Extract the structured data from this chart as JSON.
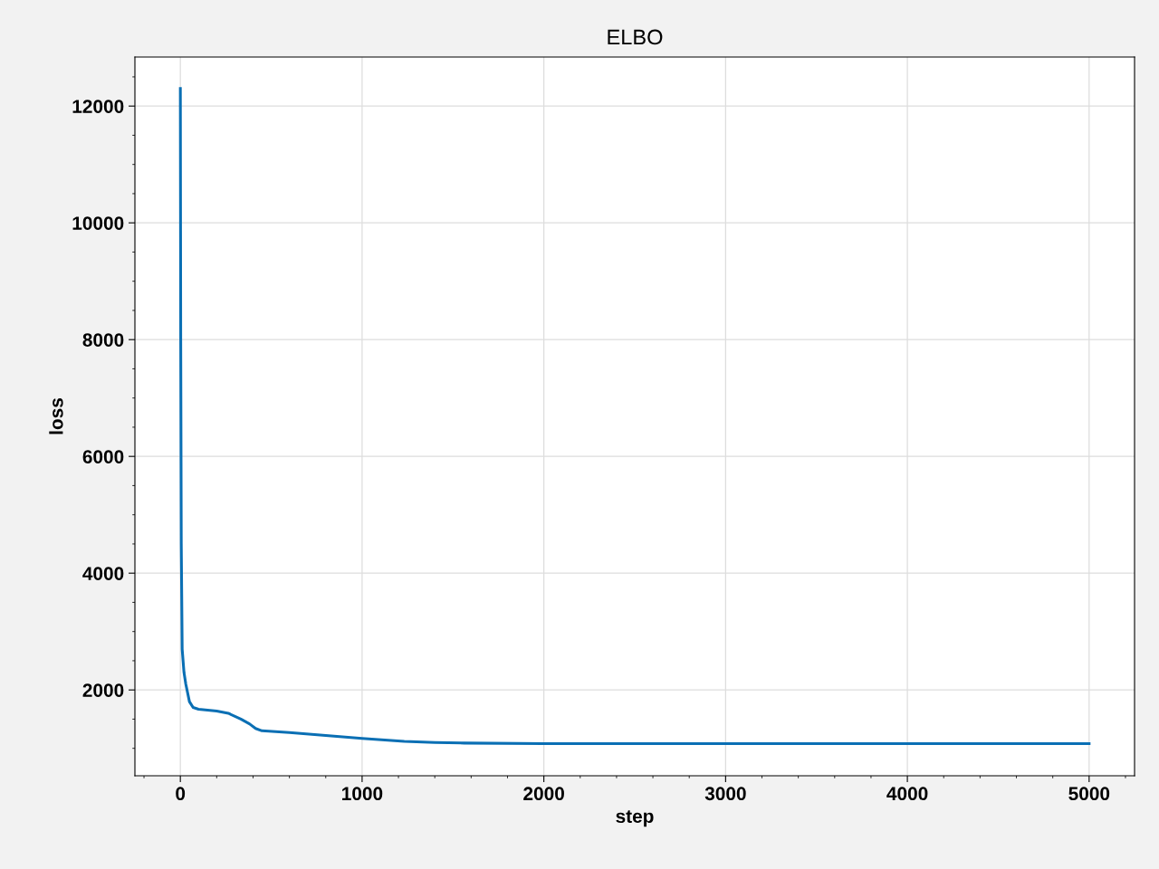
{
  "chart_data": {
    "type": "line",
    "title": "ELBO",
    "xlabel": "step",
    "ylabel": "loss",
    "x": [
      0,
      2,
      5,
      10,
      20,
      30,
      50,
      70,
      100,
      200,
      264,
      333,
      380,
      414,
      449,
      600,
      800,
      1000,
      1232,
      1400,
      1562,
      2000,
      3000,
      4000,
      5000
    ],
    "series": [
      {
        "color": "#0a6fb4",
        "values": [
          12300,
          8000,
          4500,
          2700,
          2300,
          2100,
          1800,
          1700,
          1670,
          1640,
          1600,
          1500,
          1420,
          1340,
          1300,
          1270,
          1220,
          1170,
          1120,
          1100,
          1090,
          1080,
          1080,
          1080,
          1080
        ]
      }
    ],
    "xlim": [
      -250,
      5250
    ],
    "xticks": [
      0,
      1000,
      2000,
      3000,
      4000,
      5000
    ],
    "ylim": [
      530,
      12840
    ],
    "yticks": [
      2000,
      4000,
      6000,
      8000,
      10000,
      12000
    ],
    "grid": true,
    "marker": "none",
    "line_style": "solid"
  }
}
